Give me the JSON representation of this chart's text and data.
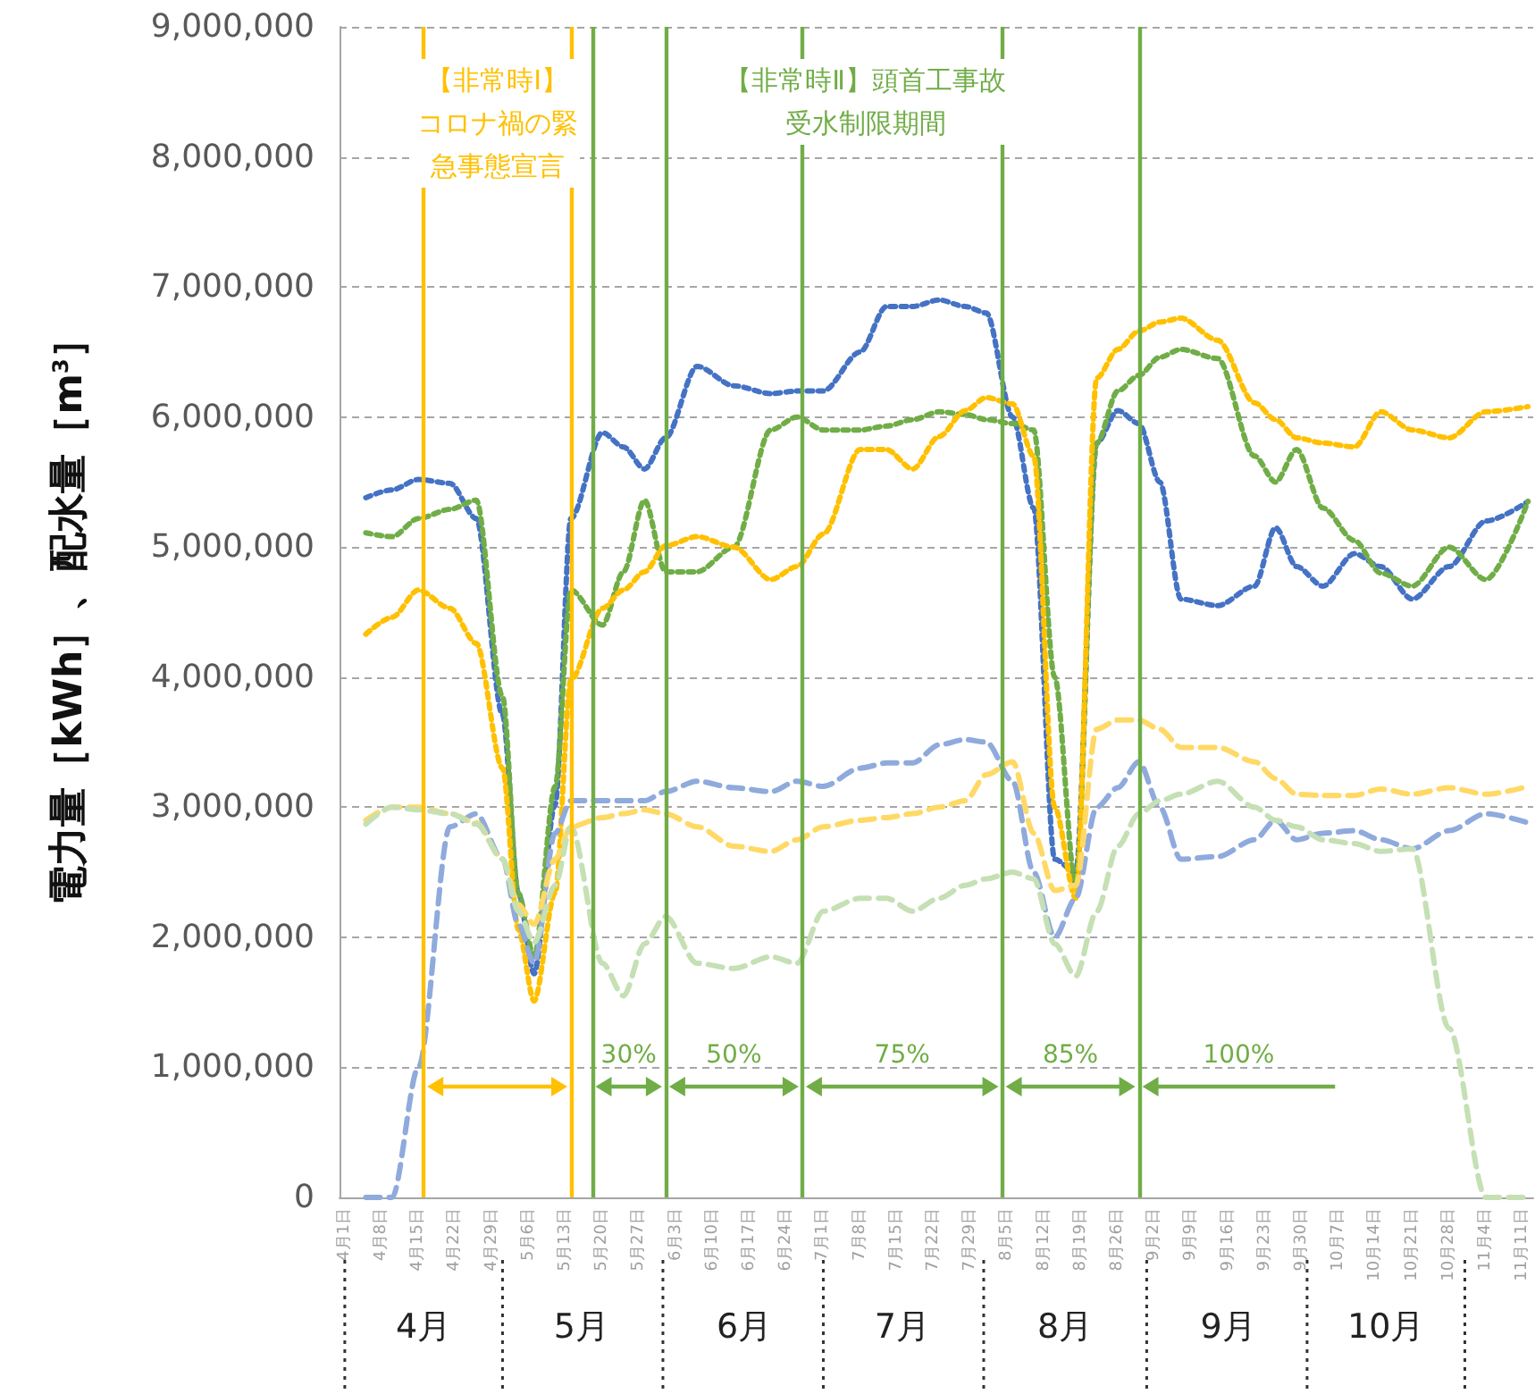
{
  "chart_data": {
    "type": "line",
    "ylabel": "電力量［kWh］、配水量［m$^{3}$］",
    "x": [
      "--04-05",
      "--04-10",
      "--04-15",
      "--04-21",
      "--04-26",
      "--05-01",
      "--05-04",
      "--05-07",
      "--05-11",
      "--05-14",
      "--05-20",
      "--05-24",
      "--05-28",
      "--06-01",
      "--06-07",
      "--06-14",
      "--06-21",
      "--06-26",
      "--07-01",
      "--07-08",
      "--07-13",
      "--07-18",
      "--07-23",
      "--07-28",
      "--08-01",
      "--08-06",
      "--08-10",
      "--08-14",
      "--08-18",
      "--08-22",
      "--08-26",
      "--08-30",
      "--09-03",
      "--09-07",
      "--09-14",
      "--09-21",
      "--09-25",
      "--09-29",
      "--10-04",
      "--10-10",
      "--10-15",
      "--10-21",
      "--10-28",
      "--11-04",
      "--11-12"
    ],
    "series": [
      {
        "color": "#4472c4",
        "line_style": "dotted",
        "values": [
          5380000,
          5440000,
          5520000,
          5490000,
          5220000,
          3710000,
          2340000,
          1720000,
          3020000,
          5220000,
          5880000,
          5770000,
          5600000,
          5840000,
          6390000,
          6240000,
          6180000,
          6200000,
          6200000,
          6500000,
          6850000,
          6850000,
          6900000,
          6850000,
          6800000,
          6000000,
          5300000,
          2600000,
          2500000,
          5800000,
          6050000,
          5950000,
          5500000,
          4600000,
          4550000,
          4700000,
          5150000,
          4850000,
          4700000,
          4950000,
          4850000,
          4600000,
          4850000,
          5200000,
          5350000
        ]
      },
      {
        "color": "#70ad47",
        "line_style": "dotted",
        "values": [
          5110000,
          5080000,
          5220000,
          5290000,
          5360000,
          3850000,
          2340000,
          1850000,
          3160000,
          4670000,
          4400000,
          4810000,
          5360000,
          4810000,
          4810000,
          5000000,
          5900000,
          6000000,
          5900000,
          5900000,
          5930000,
          5980000,
          6040000,
          6020000,
          5980000,
          5950000,
          5900000,
          4000000,
          2400000,
          5800000,
          6200000,
          6320000,
          6460000,
          6520000,
          6450000,
          5700000,
          5500000,
          5750000,
          5300000,
          5050000,
          4800000,
          4700000,
          5000000,
          4750000,
          5350000
        ]
      },
      {
        "color": "#ffc000",
        "line_style": "dotted",
        "values": [
          4330000,
          4460000,
          4670000,
          4530000,
          4260000,
          3300000,
          2060000,
          1510000,
          2340000,
          3980000,
          4530000,
          4670000,
          4810000,
          5010000,
          5080000,
          5000000,
          4750000,
          4850000,
          5100000,
          5750000,
          5750000,
          5600000,
          5850000,
          6050000,
          6150000,
          6100000,
          5700000,
          3000000,
          2300000,
          6300000,
          6520000,
          6660000,
          6730000,
          6760000,
          6590000,
          6110000,
          5980000,
          5840000,
          5800000,
          5770000,
          6040000,
          5900000,
          5840000,
          6040000,
          6080000
        ]
      },
      {
        "color": "#8faadc",
        "line_style": "dashed",
        "values": [
          0,
          0,
          1000000,
          2850000,
          2950000,
          2600000,
          2100000,
          1800000,
          2800000,
          3050000,
          3050000,
          3050000,
          3050000,
          3120000,
          3200000,
          3150000,
          3120000,
          3200000,
          3160000,
          3300000,
          3340000,
          3340000,
          3480000,
          3520000,
          3500000,
          3200000,
          2500000,
          2000000,
          2300000,
          3000000,
          3150000,
          3350000,
          3000000,
          2600000,
          2620000,
          2750000,
          2900000,
          2750000,
          2800000,
          2820000,
          2750000,
          2680000,
          2820000,
          2950000,
          2880000
        ]
      },
      {
        "color": "#ffd966",
        "line_style": "dashed",
        "values": [
          2900000,
          3000000,
          3000000,
          2950000,
          2880000,
          2600000,
          2250000,
          2100000,
          2600000,
          2850000,
          2920000,
          2950000,
          2980000,
          2950000,
          2850000,
          2700000,
          2660000,
          2750000,
          2850000,
          2900000,
          2920000,
          2950000,
          3000000,
          3050000,
          3250000,
          3350000,
          2800000,
          2360000,
          2400000,
          3600000,
          3670000,
          3670000,
          3600000,
          3460000,
          3460000,
          3350000,
          3220000,
          3100000,
          3090000,
          3090000,
          3140000,
          3100000,
          3150000,
          3100000,
          3160000
        ]
      },
      {
        "color": "#c5e0b4",
        "line_style": "dashed",
        "values": [
          2870000,
          3000000,
          2980000,
          2950000,
          2870000,
          2600000,
          2200000,
          1960000,
          2400000,
          2850000,
          1800000,
          1550000,
          1950000,
          2160000,
          1800000,
          1760000,
          1850000,
          1800000,
          2200000,
          2300000,
          2300000,
          2200000,
          2300000,
          2400000,
          2450000,
          2500000,
          2450000,
          1950000,
          1700000,
          2200000,
          2700000,
          2950000,
          3050000,
          3100000,
          3200000,
          3000000,
          2900000,
          2850000,
          2750000,
          2720000,
          2660000,
          2680000,
          1300000,
          0,
          0
        ]
      }
    ],
    "xlim": [
      "--03-31",
      "--11-13"
    ],
    "xticks": [
      {
        "value": "--04-01",
        "label": "4月1日"
      },
      {
        "value": "--04-08",
        "label": "4月8日"
      },
      {
        "value": "--04-15",
        "label": "4月15日"
      },
      {
        "value": "--04-22",
        "label": "4月22日"
      },
      {
        "value": "--04-29",
        "label": "4月29日"
      },
      {
        "value": "--05-06",
        "label": "5月6日"
      },
      {
        "value": "--05-13",
        "label": "5月13日"
      },
      {
        "value": "--05-20",
        "label": "5月20日"
      },
      {
        "value": "--05-27",
        "label": "5月27日"
      },
      {
        "value": "--06-03",
        "label": "6月3日"
      },
      {
        "value": "--06-10",
        "label": "6月10日"
      },
      {
        "value": "--06-17",
        "label": "6月17日"
      },
      {
        "value": "--06-24",
        "label": "6月24日"
      },
      {
        "value": "--07-01",
        "label": "7月1日"
      },
      {
        "value": "--07-08",
        "label": "7月8日"
      },
      {
        "value": "--07-15",
        "label": "7月15日"
      },
      {
        "value": "--07-22",
        "label": "7月22日"
      },
      {
        "value": "--07-29",
        "label": "7月29日"
      },
      {
        "value": "--08-05",
        "label": "8月5日"
      },
      {
        "value": "--08-12",
        "label": "8月12日"
      },
      {
        "value": "--08-19",
        "label": "8月19日"
      },
      {
        "value": "--08-26",
        "label": "8月26日"
      },
      {
        "value": "--09-02",
        "label": "9月2日"
      },
      {
        "value": "--09-09",
        "label": "9月9日"
      },
      {
        "value": "--09-16",
        "label": "9月16日"
      },
      {
        "value": "--09-23",
        "label": "9月23日"
      },
      {
        "value": "--09-30",
        "label": "9月30日"
      },
      {
        "value": "--10-07",
        "label": "10月7日"
      },
      {
        "value": "--10-14",
        "label": "10月14日"
      },
      {
        "value": "--10-21",
        "label": "10月21日"
      },
      {
        "value": "--10-28",
        "label": "10月28日"
      },
      {
        "value": "--11-04",
        "label": "11月4日"
      },
      {
        "value": "--11-11",
        "label": "11月11日"
      }
    ],
    "x2lim": [
      "--03-31",
      "--11-13"
    ],
    "x2ticks": [
      {
        "value": "--04-16",
        "label": "4月"
      },
      {
        "value": "--05-16",
        "label": "5月"
      },
      {
        "value": "--06-16",
        "label": "6月"
      },
      {
        "value": "--07-16",
        "label": "7月"
      },
      {
        "value": "--08-16",
        "label": "8月"
      },
      {
        "value": "--09-16",
        "label": "9月"
      },
      {
        "value": "--10-16",
        "label": "10月"
      }
    ],
    "ylim": [
      0,
      9000000
    ],
    "yticks": [
      {
        "value": 0,
        "label": "0"
      },
      {
        "value": 1000000,
        "label": "1,000,000"
      },
      {
        "value": 2000000,
        "label": "2,000,000"
      },
      {
        "value": 3000000,
        "label": "3,000,000"
      },
      {
        "value": 4000000,
        "label": "4,000,000"
      },
      {
        "value": 5000000,
        "label": "5,000,000"
      },
      {
        "value": 6000000,
        "label": "6,000,000"
      },
      {
        "value": 7000000,
        "label": "7,000,000"
      },
      {
        "value": 8000000,
        "label": "8,000,000"
      },
      {
        "value": 9000000,
        "label": "9,000,000"
      }
    ],
    "ref_lines": [
      {
        "axis": "x",
        "value": "--04-16",
        "color": "#ffc000"
      },
      {
        "axis": "x",
        "value": "--05-14",
        "color": "#ffc000"
      },
      {
        "axis": "x",
        "value": "--05-18",
        "color": "#70ad47"
      },
      {
        "axis": "x",
        "value": "--06-01",
        "color": "#70ad47"
      },
      {
        "axis": "x",
        "value": "--06-27",
        "color": "#70ad47"
      },
      {
        "axis": "x",
        "value": "--08-04",
        "color": "#70ad47"
      },
      {
        "axis": "x",
        "value": "--08-30",
        "color": "#70ad47"
      }
    ],
    "annotations": [
      "【非常時Ⅰ】コロナ禍の緊急事態宣言",
      "【非常時Ⅱ】頭首工事故受水制限期間",
      "30%",
      "50%",
      "75%",
      "85%",
      "100%"
    ],
    "grid": "y",
    "marker": "none"
  }
}
